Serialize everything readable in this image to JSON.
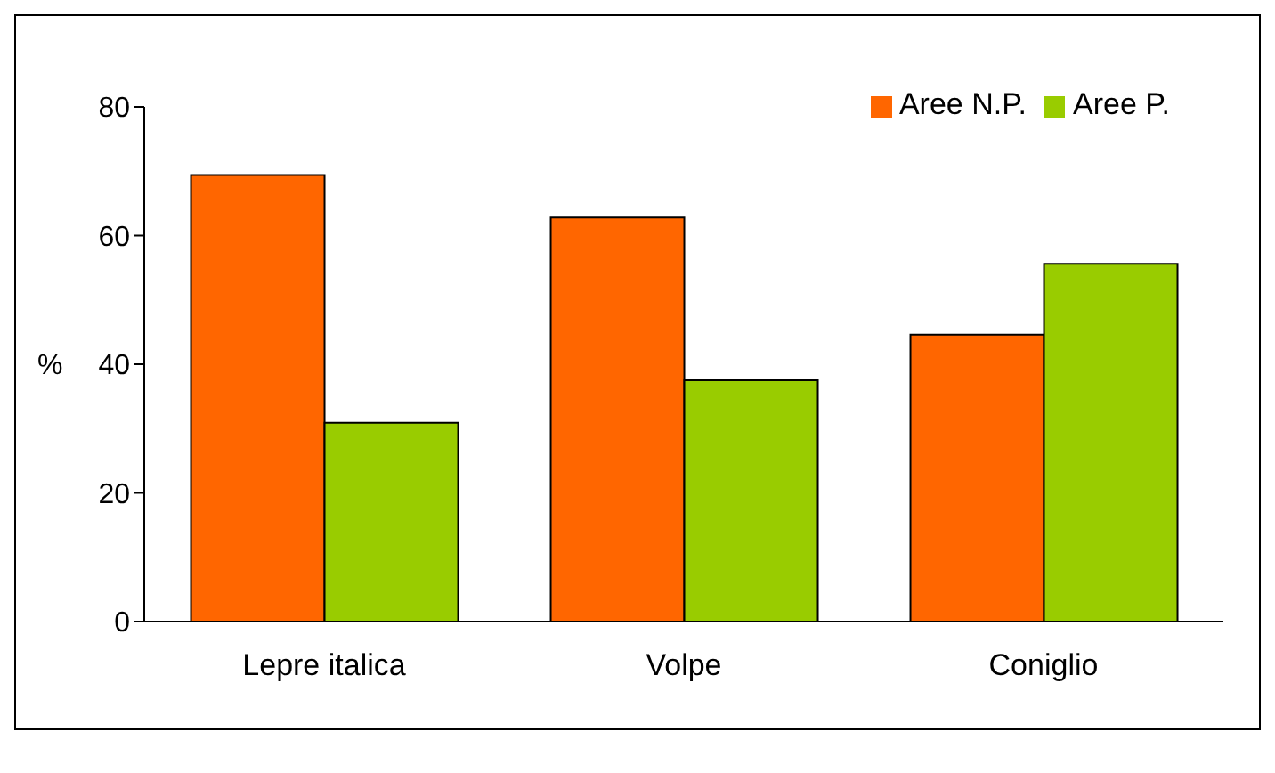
{
  "chart_data": {
    "type": "bar",
    "ylabel": "%",
    "categories": [
      "Lepre italica",
      "Volpe",
      "Coniglio"
    ],
    "series": [
      {
        "name": "Aree N.P.",
        "color": "#ff6600",
        "values": [
          69.4,
          62.8,
          44.6
        ]
      },
      {
        "name": "Aree P.",
        "color": "#99cc00",
        "values": [
          30.9,
          37.5,
          55.6
        ]
      }
    ],
    "ylim": [
      0,
      80
    ],
    "yticks": [
      0,
      20,
      40,
      60,
      80
    ],
    "grid": false,
    "legend": "top right"
  }
}
